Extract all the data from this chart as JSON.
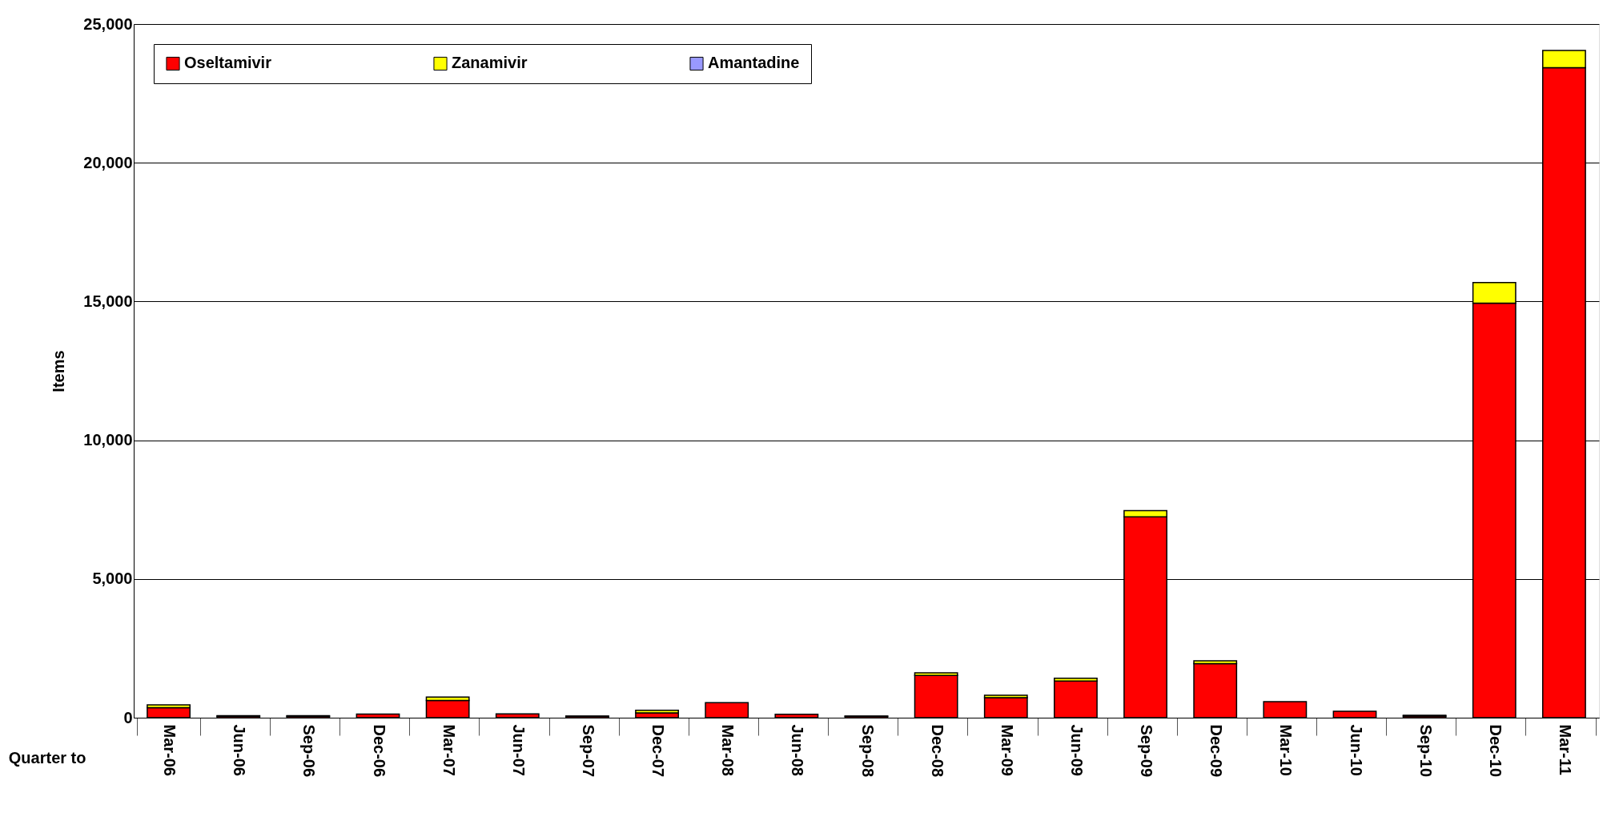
{
  "chart_data": {
    "type": "bar",
    "stacked": true,
    "xlabel": "Quarter to",
    "ylabel": "Items",
    "categories": [
      "Mar-06",
      "Jun-06",
      "Sep-06",
      "Dec-06",
      "Mar-07",
      "Jun-07",
      "Sep-07",
      "Dec-07",
      "Mar-08",
      "Jun-08",
      "Sep-08",
      "Dec-08",
      "Mar-09",
      "Jun-09",
      "Sep-09",
      "Dec-09",
      "Mar-10",
      "Jun-10",
      "Sep-10",
      "Dec-10",
      "Mar-11"
    ],
    "series": [
      {
        "name": "Oseltamivir",
        "color": "#ff0000",
        "values": [
          360,
          50,
          50,
          130,
          620,
          140,
          50,
          170,
          540,
          120,
          50,
          1520,
          720,
          1320,
          7240,
          1950,
          580,
          230,
          60,
          14940,
          23430
        ]
      },
      {
        "name": "Zanamivir",
        "color": "#ffff00",
        "values": [
          100,
          20,
          20,
          null,
          120,
          null,
          10,
          100,
          null,
          null,
          10,
          100,
          90,
          100,
          220,
          100,
          null,
          null,
          30,
          740,
          620
        ]
      },
      {
        "name": "Amantadine",
        "color": "#9999ff",
        "values": [
          null,
          null,
          null,
          null,
          null,
          null,
          null,
          null,
          null,
          null,
          null,
          null,
          null,
          null,
          null,
          null,
          null,
          null,
          null,
          null,
          null
        ]
      }
    ],
    "ylim": [
      0,
      25000
    ],
    "yticks": [
      {
        "value": 0,
        "label": "0"
      },
      {
        "value": 5000,
        "label": "5,000"
      },
      {
        "value": 10000,
        "label": "10,000"
      },
      {
        "value": 15000,
        "label": "15,000"
      },
      {
        "value": 20000,
        "label": "20,000"
      },
      {
        "value": 25000,
        "label": "25,000"
      }
    ],
    "grid": "y",
    "legend": "top left"
  }
}
